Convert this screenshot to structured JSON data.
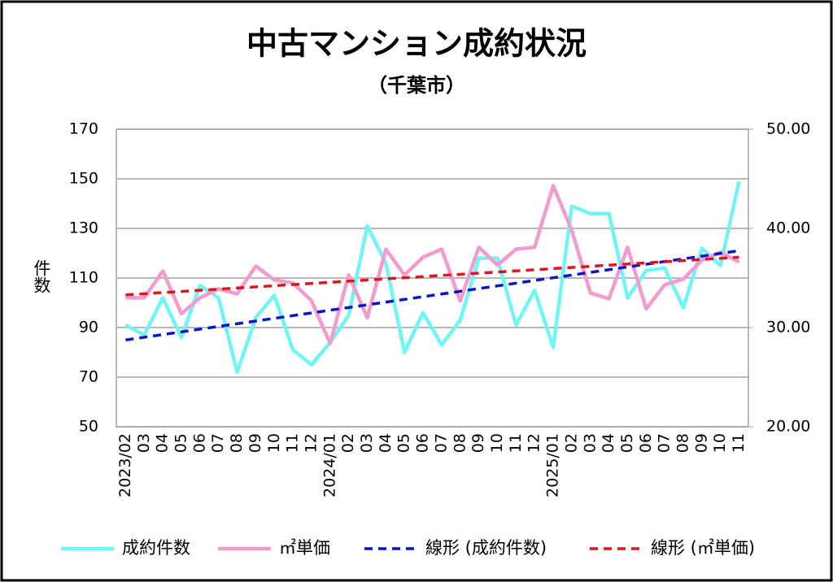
{
  "chart_data": {
    "type": "line",
    "title": "中古マンション成約状況",
    "subtitle": "（千葉市）",
    "y_label": "件数",
    "categories": [
      "2023/02",
      "03",
      "04",
      "05",
      "06",
      "07",
      "08",
      "09",
      "10",
      "11",
      "12",
      "2024/01",
      "02",
      "03",
      "04",
      "05",
      "06",
      "07",
      "08",
      "09",
      "10",
      "11",
      "12",
      "2025/01",
      "02",
      "03",
      "04",
      "05",
      "06",
      "07",
      "08",
      "09",
      "10",
      "11"
    ],
    "series": [
      {
        "name": "成約件数",
        "color": "#6ff5f5",
        "axis": "y",
        "values": [
          91,
          87,
          102,
          86,
          107,
          102,
          72,
          94,
          103,
          81,
          75,
          84,
          95,
          131,
          116,
          80,
          96,
          83,
          93,
          118,
          118,
          91,
          105,
          82,
          139,
          136,
          136,
          102,
          113,
          114,
          98,
          122,
          115,
          149
        ]
      },
      {
        "name": "㎡単価",
        "color": "#f29bcc",
        "axis": "y2",
        "values": [
          33.0,
          33.0,
          35.7,
          31.4,
          33.0,
          33.9,
          33.4,
          36.2,
          34.8,
          34.5,
          32.7,
          28.4,
          35.3,
          31.0,
          37.9,
          35.3,
          37.1,
          37.9,
          32.7,
          38.1,
          36.3,
          37.9,
          38.1,
          44.3,
          39.8,
          33.5,
          32.9,
          38.1,
          31.9,
          34.3,
          34.9,
          36.8,
          37.6,
          36.6
        ]
      }
    ],
    "trendlines": [
      {
        "name": "線形 (成約件数)",
        "color": "#0a14c8",
        "axis": "y",
        "values": [
          85,
          121
        ]
      },
      {
        "name": "線形 (㎡単価)",
        "color": "#e0141e",
        "axis": "y2",
        "values": [
          33.3,
          37.1
        ]
      }
    ],
    "ylim": [
      50,
      170
    ],
    "yticks": [
      50,
      70,
      90,
      110,
      130,
      150,
      170
    ],
    "y2lim": [
      20,
      50
    ],
    "y2ticks": [
      {
        "value": 20,
        "label": "20.00"
      },
      {
        "value": 30,
        "label": "30.00"
      },
      {
        "value": 40,
        "label": "40.00"
      },
      {
        "value": 50,
        "label": "50.00"
      }
    ],
    "grid": true,
    "legend": "bottom"
  }
}
